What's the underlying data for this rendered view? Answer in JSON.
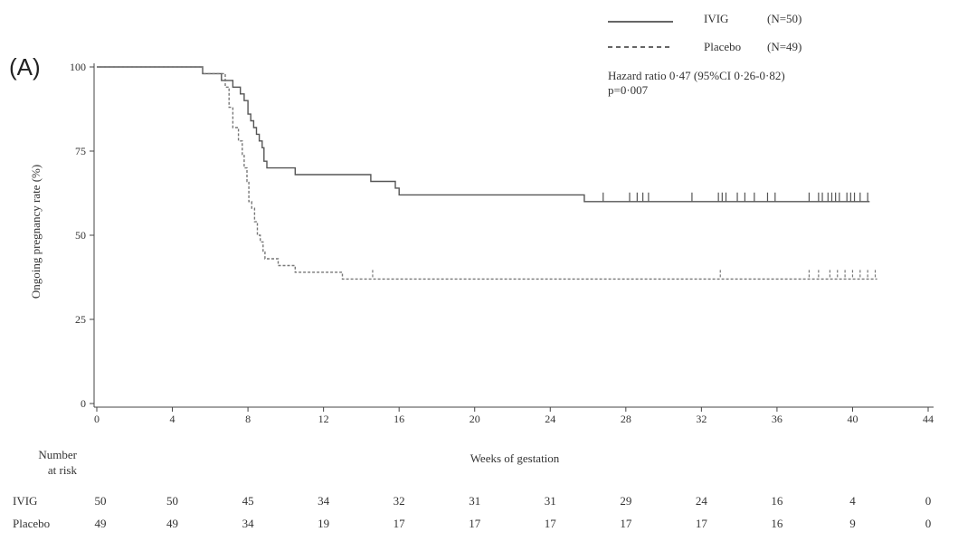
{
  "chart_data": {
    "type": "line",
    "subtype": "kaplan-meier",
    "panel_label": "(A)",
    "xlabel": "Weeks of gestation",
    "ylabel": "Ongoing pregnancy rate (%)",
    "xlim": [
      0,
      44
    ],
    "ylim": [
      0,
      100
    ],
    "x_ticks": [
      0,
      4,
      8,
      12,
      16,
      20,
      24,
      28,
      32,
      36,
      40,
      44
    ],
    "y_ticks": [
      0,
      25,
      50,
      75,
      100
    ],
    "legend": [
      {
        "name": "IVIG",
        "n_label": "(N=50)",
        "style": "solid"
      },
      {
        "name": "Placebo",
        "n_label": "(N=49)",
        "style": "dashed"
      }
    ],
    "hazard_text": "Hazard ratio 0·47 (95%CI 0·26-0·82)",
    "p_text": "p=0·007",
    "series": [
      {
        "name": "IVIG",
        "color": "#555555",
        "style": "solid",
        "points": [
          [
            0,
            100
          ],
          [
            5.6,
            100
          ],
          [
            5.6,
            98
          ],
          [
            6.6,
            98
          ],
          [
            6.6,
            96
          ],
          [
            7.2,
            96
          ],
          [
            7.2,
            94
          ],
          [
            7.6,
            94
          ],
          [
            7.6,
            92
          ],
          [
            7.8,
            92
          ],
          [
            7.8,
            90
          ],
          [
            8.0,
            90
          ],
          [
            8.0,
            86
          ],
          [
            8.15,
            86
          ],
          [
            8.15,
            84
          ],
          [
            8.3,
            84
          ],
          [
            8.3,
            82
          ],
          [
            8.45,
            82
          ],
          [
            8.45,
            80
          ],
          [
            8.6,
            80
          ],
          [
            8.6,
            78
          ],
          [
            8.75,
            78
          ],
          [
            8.75,
            76
          ],
          [
            8.85,
            76
          ],
          [
            8.85,
            72
          ],
          [
            9.0,
            72
          ],
          [
            9.0,
            70
          ],
          [
            10.5,
            70
          ],
          [
            10.5,
            68
          ],
          [
            14.5,
            68
          ],
          [
            14.5,
            66
          ],
          [
            15.8,
            66
          ],
          [
            15.8,
            64
          ],
          [
            16.0,
            64
          ],
          [
            16.0,
            62
          ],
          [
            25.8,
            62
          ],
          [
            25.8,
            60
          ],
          [
            40.9,
            60
          ]
        ],
        "censor_x": [
          26.8,
          28.2,
          28.6,
          28.9,
          29.2,
          31.5,
          32.9,
          33.1,
          33.3,
          33.9,
          34.3,
          34.8,
          35.5,
          35.9,
          37.7,
          38.2,
          38.4,
          38.7,
          38.9,
          39.1,
          39.3,
          39.7,
          39.9,
          40.1,
          40.4,
          40.8
        ]
      },
      {
        "name": "Placebo",
        "color": "#777777",
        "style": "dashed",
        "points": [
          [
            0,
            100
          ],
          [
            5.6,
            100
          ],
          [
            5.6,
            98
          ],
          [
            6.8,
            98
          ],
          [
            6.8,
            94
          ],
          [
            7.0,
            94
          ],
          [
            7.0,
            88
          ],
          [
            7.2,
            88
          ],
          [
            7.2,
            82
          ],
          [
            7.5,
            82
          ],
          [
            7.5,
            78
          ],
          [
            7.7,
            78
          ],
          [
            7.7,
            74
          ],
          [
            7.8,
            74
          ],
          [
            7.8,
            70
          ],
          [
            7.95,
            70
          ],
          [
            7.95,
            66
          ],
          [
            8.05,
            66
          ],
          [
            8.05,
            60
          ],
          [
            8.2,
            60
          ],
          [
            8.2,
            58
          ],
          [
            8.35,
            58
          ],
          [
            8.35,
            54
          ],
          [
            8.5,
            54
          ],
          [
            8.5,
            50
          ],
          [
            8.65,
            50
          ],
          [
            8.65,
            48
          ],
          [
            8.8,
            48
          ],
          [
            8.8,
            45
          ],
          [
            8.9,
            45
          ],
          [
            8.9,
            43
          ],
          [
            9.6,
            43
          ],
          [
            9.6,
            41
          ],
          [
            10.5,
            41
          ],
          [
            10.5,
            39
          ],
          [
            13.0,
            39
          ],
          [
            13.0,
            37
          ],
          [
            41.3,
            37
          ]
        ],
        "censor_x": [
          14.6,
          33.0,
          37.7,
          38.2,
          38.8,
          39.2,
          39.6,
          40.0,
          40.4,
          40.8,
          41.2
        ]
      }
    ],
    "risk_table": {
      "title_line1": "Number",
      "title_line2": "at risk",
      "x": [
        0,
        4,
        8,
        12,
        16,
        20,
        24,
        28,
        32,
        36,
        40,
        44
      ],
      "rows": [
        {
          "name": "IVIG",
          "values": [
            "50",
            "50",
            "45",
            "34",
            "32",
            "31",
            "31",
            "29",
            "24",
            "16",
            "4",
            "0"
          ]
        },
        {
          "name": "Placebo",
          "values": [
            "49",
            "49",
            "34",
            "19",
            "17",
            "17",
            "17",
            "17",
            "17",
            "16",
            "9",
            "0"
          ]
        }
      ]
    }
  }
}
